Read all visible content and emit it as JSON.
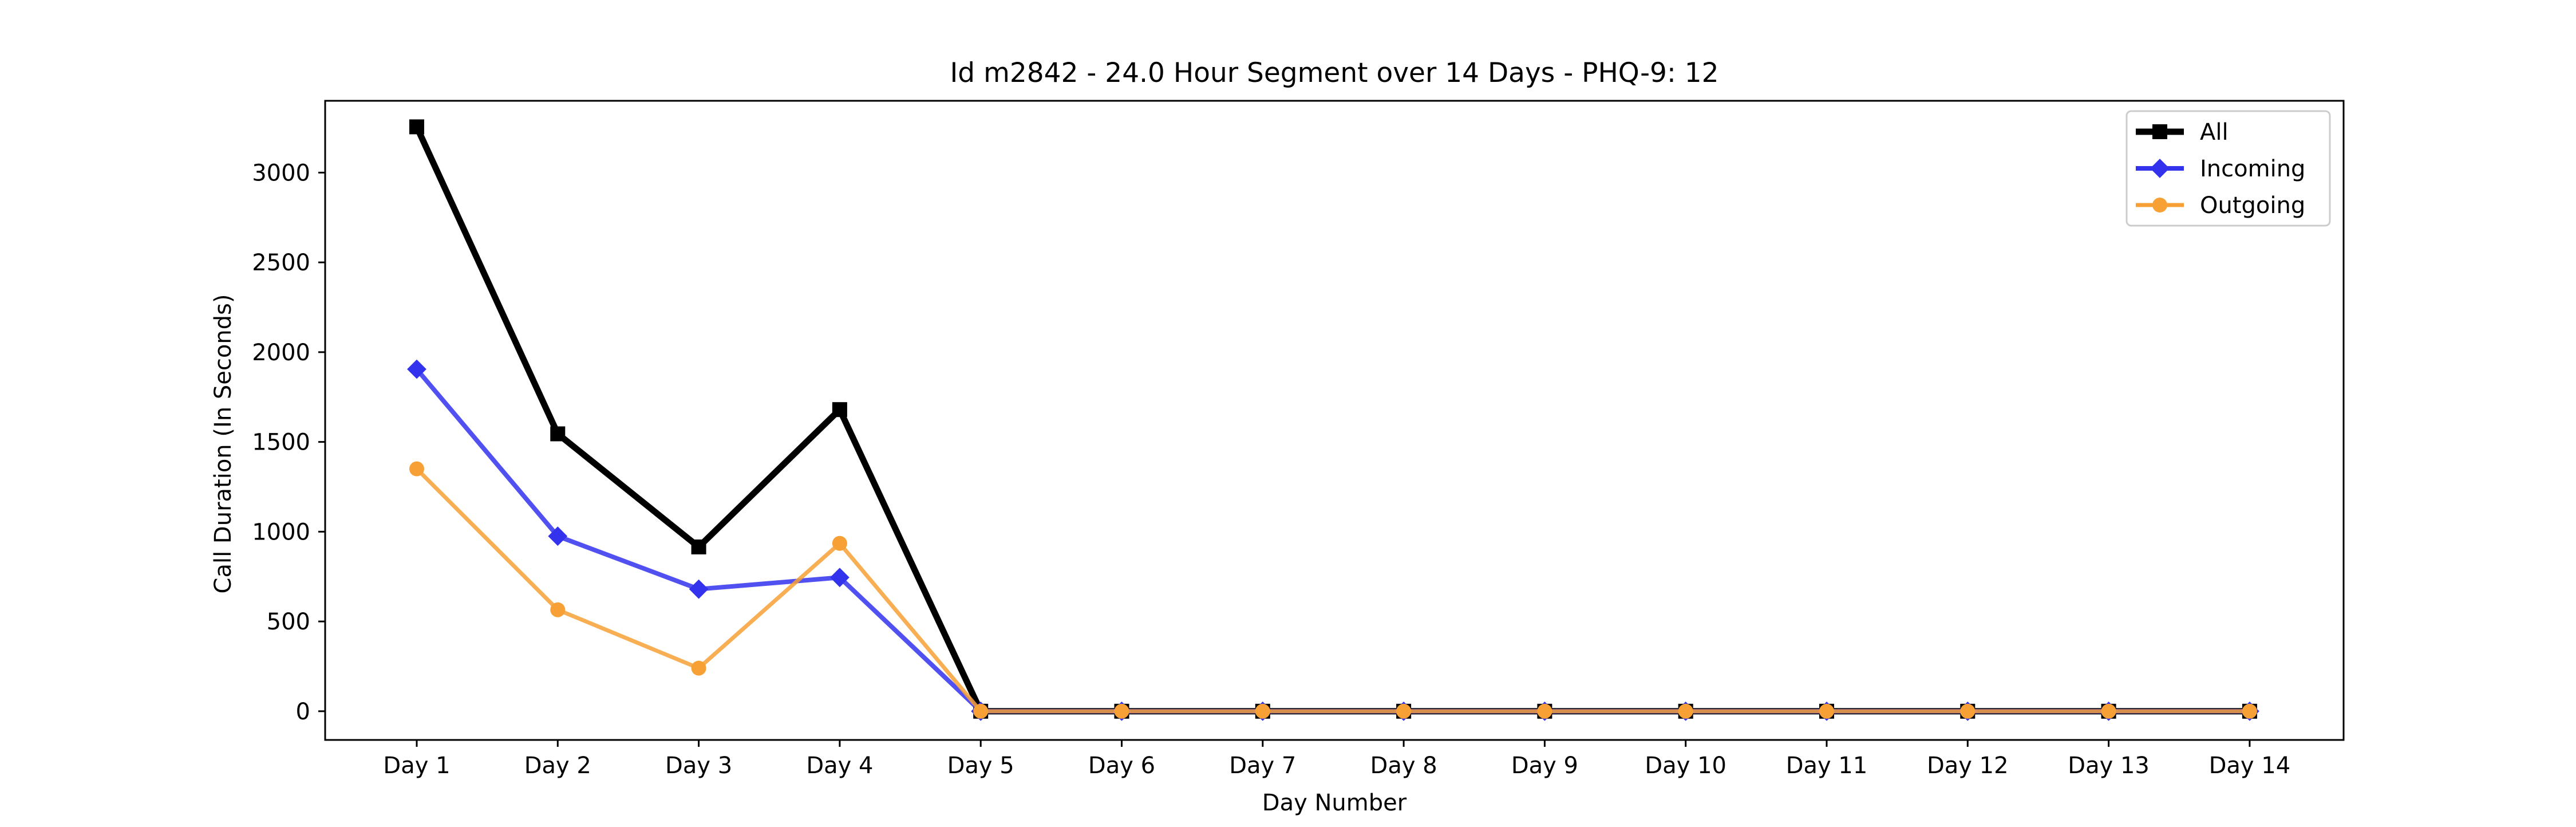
{
  "chart_data": {
    "type": "line",
    "title": "Id m2842 - 24.0 Hour Segment over 14 Days - PHQ-9: 12",
    "xlabel": "Day Number",
    "ylabel": "Call Duration (In Seconds)",
    "categories": [
      "Day 1",
      "Day 2",
      "Day 3",
      "Day 4",
      "Day 5",
      "Day 6",
      "Day 7",
      "Day 8",
      "Day 9",
      "Day 10",
      "Day 11",
      "Day 12",
      "Day 13",
      "Day 14"
    ],
    "ylim": [
      -160,
      3400
    ],
    "yticks": [
      0,
      500,
      1000,
      1500,
      2000,
      2500,
      3000
    ],
    "grid": false,
    "legend_position": "top-right",
    "series": [
      {
        "name": "All",
        "color": "#000000",
        "marker": "square",
        "values": [
          3255,
          1545,
          915,
          1680,
          0,
          0,
          0,
          0,
          0,
          0,
          0,
          0,
          0,
          0
        ]
      },
      {
        "name": "Incoming",
        "color": "#3333ee",
        "marker": "diamond",
        "values": [
          1905,
          975,
          680,
          745,
          0,
          0,
          0,
          0,
          0,
          0,
          0,
          0,
          0,
          0
        ]
      },
      {
        "name": "Outgoing",
        "color": "#f7a035",
        "marker": "circle",
        "values": [
          1350,
          565,
          240,
          935,
          0,
          0,
          0,
          0,
          0,
          0,
          0,
          0,
          0,
          0
        ]
      }
    ]
  }
}
